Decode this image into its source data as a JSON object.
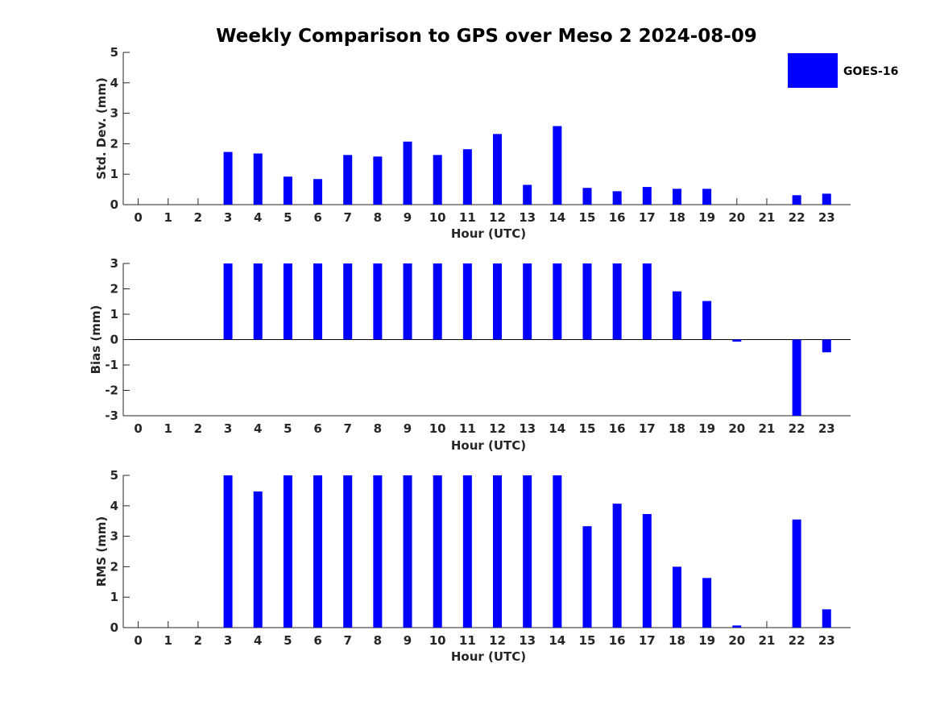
{
  "title": "Weekly Comparison to GPS over Meso 2 2024-08-09",
  "colors": {
    "bar": "#0000ff",
    "axis": "#262626",
    "zero_line": "#000000"
  },
  "legend": {
    "placement": "top-right",
    "entries": [
      {
        "name": "GOES-16",
        "color": "#0000ff"
      }
    ]
  },
  "chart_data": [
    {
      "type": "bar",
      "xlabel": "Hour (UTC)",
      "ylabel": "Std. Dev. (mm)",
      "ylim": [
        0,
        5
      ],
      "yticks": [
        "0",
        "1",
        "2",
        "3",
        "4",
        "5"
      ],
      "categories": [
        "0",
        "1",
        "2",
        "3",
        "4",
        "5",
        "6",
        "7",
        "8",
        "9",
        "10",
        "11",
        "12",
        "13",
        "14",
        "15",
        "16",
        "17",
        "18",
        "19",
        "20",
        "21",
        "22",
        "23"
      ],
      "series": [
        {
          "name": "GOES-16",
          "values": [
            0,
            0,
            0,
            1.73,
            1.68,
            0.92,
            0.84,
            1.63,
            1.58,
            2.07,
            1.63,
            1.82,
            2.32,
            0.65,
            2.58,
            0.55,
            0.44,
            0.58,
            0.52,
            0.52,
            0,
            0,
            0.31,
            0.36
          ]
        }
      ]
    },
    {
      "type": "bar",
      "xlabel": "Hour (UTC)",
      "ylabel": "Bias (mm)",
      "ylim": [
        -3,
        3
      ],
      "yticks": [
        "-3",
        "-2",
        "-1",
        "0",
        "1",
        "2",
        "3"
      ],
      "categories": [
        "0",
        "1",
        "2",
        "3",
        "4",
        "5",
        "6",
        "7",
        "8",
        "9",
        "10",
        "11",
        "12",
        "13",
        "14",
        "15",
        "16",
        "17",
        "18",
        "19",
        "20",
        "21",
        "22",
        "23"
      ],
      "series": [
        {
          "name": "GOES-16",
          "values": [
            0,
            0,
            0,
            3,
            3,
            3,
            3,
            3,
            3,
            3,
            3,
            3,
            3,
            3,
            3,
            3,
            3,
            3,
            1.9,
            1.52,
            -0.08,
            0,
            -3,
            -0.5
          ]
        }
      ]
    },
    {
      "type": "bar",
      "xlabel": "Hour (UTC)",
      "ylabel": "RMS (mm)",
      "ylim": [
        0,
        5
      ],
      "yticks": [
        "0",
        "1",
        "2",
        "3",
        "4",
        "5"
      ],
      "categories": [
        "0",
        "1",
        "2",
        "3",
        "4",
        "5",
        "6",
        "7",
        "8",
        "9",
        "10",
        "11",
        "12",
        "13",
        "14",
        "15",
        "16",
        "17",
        "18",
        "19",
        "20",
        "21",
        "22",
        "23"
      ],
      "series": [
        {
          "name": "GOES-16",
          "values": [
            0,
            0,
            0,
            5,
            4.47,
            5,
            5,
            5,
            5,
            5,
            5,
            5,
            5,
            5,
            5,
            3.33,
            4.07,
            3.73,
            2.0,
            1.63,
            0.07,
            0,
            3.55,
            0.6
          ]
        }
      ]
    }
  ]
}
